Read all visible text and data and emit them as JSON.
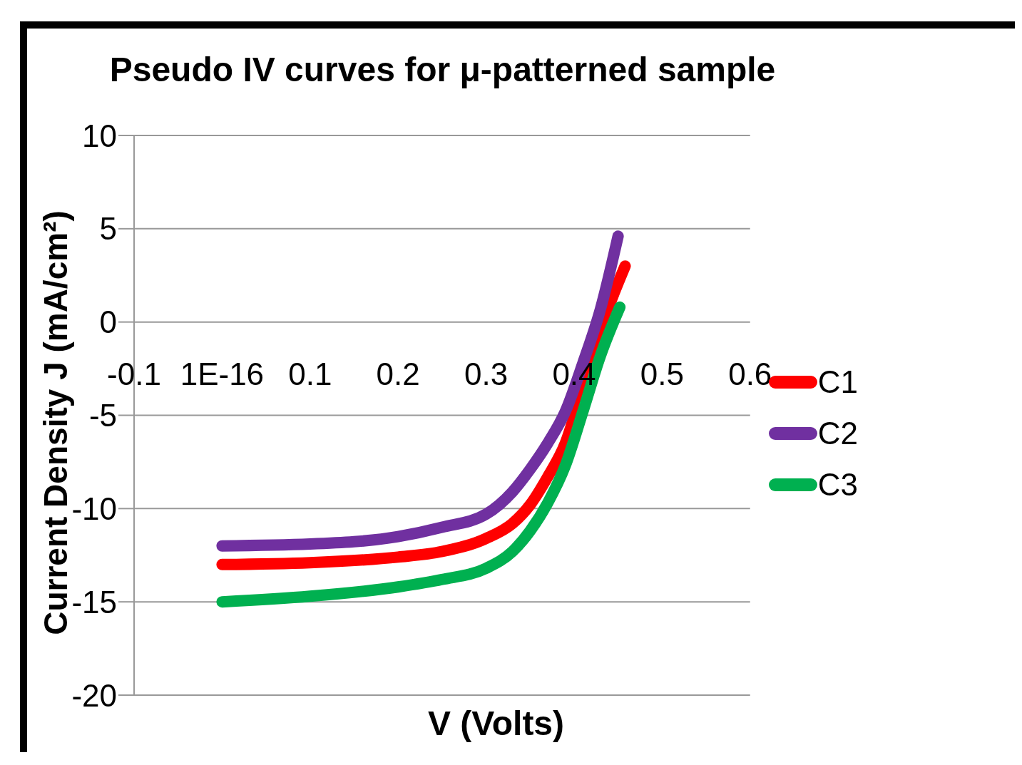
{
  "chart_data": {
    "type": "line",
    "title": "Pseudo IV curves for μ-patterned sample",
    "xlabel": "V (Volts)",
    "ylabel": "Current Density J (mA/cm²)",
    "xlim": [
      -0.1,
      0.6
    ],
    "xticks": [
      -0.1,
      {
        "value": 0,
        "label": "1E-16"
      },
      0.1,
      0.2,
      0.3,
      0.4,
      0.5,
      0.6
    ],
    "ylim": [
      -20,
      10
    ],
    "yticks": [
      -20,
      -15,
      -10,
      -5,
      0,
      5,
      10
    ],
    "grid": "y",
    "legend": "right",
    "marker": "none",
    "line_style": "solid",
    "series": [
      {
        "name": "C1",
        "color": "#ff0000",
        "x": [
          0,
          0.1,
          0.2,
          0.25,
          0.3,
          0.33,
          0.35,
          0.37,
          0.39,
          0.41,
          0.43,
          0.445,
          0.458
        ],
        "values": [
          -13,
          -12.9,
          -12.6,
          -12.3,
          -11.6,
          -10.8,
          -9.8,
          -8.3,
          -6.5,
          -3.5,
          -0.4,
          1.5,
          3.0
        ]
      },
      {
        "name": "C2",
        "color": "#7030a0",
        "x": [
          0,
          0.1,
          0.2,
          0.25,
          0.3,
          0.33,
          0.35,
          0.37,
          0.39,
          0.41,
          0.43,
          0.45
        ],
        "values": [
          -12,
          -11.9,
          -11.5,
          -11.0,
          -10.3,
          -9.1,
          -7.9,
          -6.5,
          -4.8,
          -2.2,
          0.7,
          4.6
        ]
      },
      {
        "name": "C3",
        "color": "#00b050",
        "x": [
          0,
          0.1,
          0.2,
          0.25,
          0.3,
          0.33,
          0.35,
          0.37,
          0.39,
          0.41,
          0.43,
          0.452
        ],
        "values": [
          -15,
          -14.7,
          -14.2,
          -13.8,
          -13.2,
          -12.3,
          -11.2,
          -9.7,
          -7.7,
          -4.8,
          -1.8,
          0.8
        ]
      }
    ]
  }
}
